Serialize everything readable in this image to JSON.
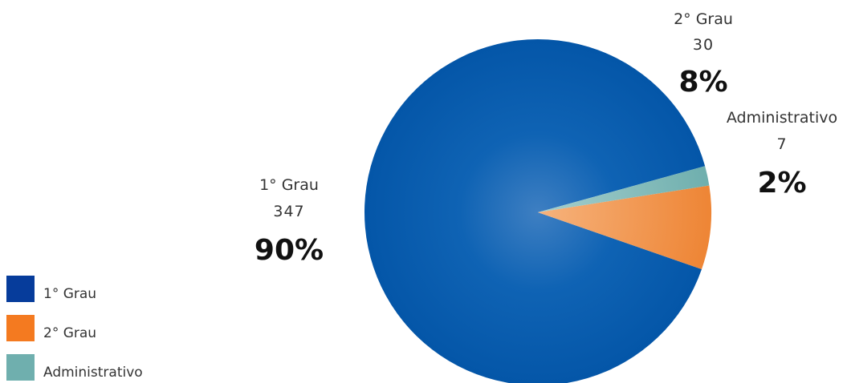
{
  "chart_data": {
    "type": "pie",
    "categories": [
      "1° Grau",
      "2° Grau",
      "Administrativo"
    ],
    "values": [
      347,
      30,
      7
    ],
    "percent_labels": [
      "90%",
      "8%",
      "2%"
    ],
    "colors": [
      "#0456A8",
      "#F08A3C",
      "#6FAFAE"
    ],
    "legend_colors": [
      "#063C9B",
      "#F47A20",
      "#6FAFAE"
    ],
    "legend": {
      "placement": "bottom-left",
      "items": [
        "1° Grau",
        "2° Grau",
        "Administrativo"
      ]
    }
  }
}
